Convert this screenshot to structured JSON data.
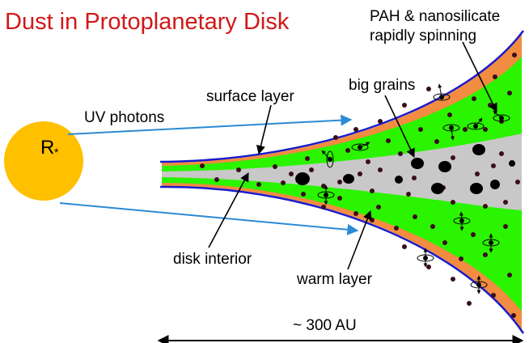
{
  "title": "Dust in Protoplanetary Disk",
  "star": {
    "symbol": "R",
    "subscript": "*"
  },
  "labels": {
    "pah_line1": "PAH & nanosilicate",
    "pah_line2": "rapidly spinning",
    "big_grains": "big grains",
    "surface_layer": "surface layer",
    "uv_photons": "UV photons",
    "disk_interior": "disk interior",
    "warm_layer": "warm layer",
    "scale": "~ 300 AU"
  },
  "colors": {
    "title": "#d01818",
    "star": "#ffc000",
    "surface_layer": "#f28c40",
    "warm_layer": "#2bf400",
    "interior": "#c8c8c8",
    "disk_edge": "#1a1acc",
    "uv_ray": "#2a8ad4",
    "grain": "#3a0d1c"
  }
}
